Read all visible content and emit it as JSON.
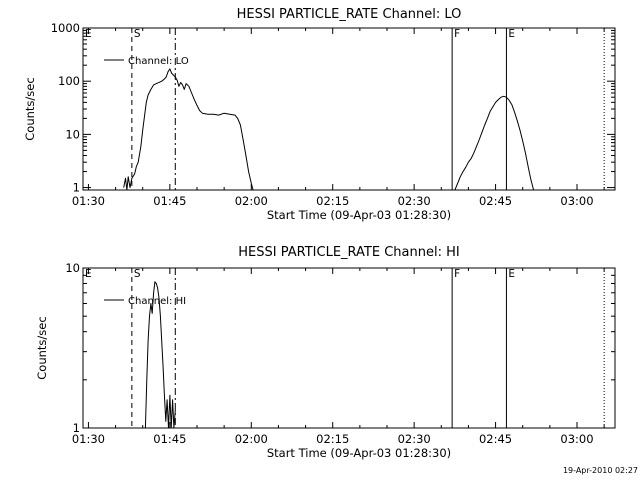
{
  "chart_data": [
    {
      "type": "line",
      "title": "HESSI PARTICLE_RATE Channel: LO",
      "xlabel": "Start Time (09-Apr-03 01:28:30)",
      "ylabel": "Counts/sec",
      "y_scale": "log",
      "ylim": [
        0.9,
        1000
      ],
      "xlim": [
        "01:29",
        "03:07"
      ],
      "x_tick_labels": [
        "01:30",
        "01:45",
        "02:00",
        "02:15",
        "02:30",
        "02:45",
        "03:00"
      ],
      "y_tick_labels": [
        "1",
        "10",
        "100",
        "1000"
      ],
      "legend": {
        "entry": "Channel: LO",
        "position": "top-left"
      },
      "markers": [
        {
          "label": "E",
          "time": "01:29",
          "style": "none"
        },
        {
          "label": "S",
          "time": "01:38",
          "style": "dashed"
        },
        {
          "label": "",
          "time": "01:46",
          "style": "dash-dot"
        },
        {
          "label": "F",
          "time": "02:37",
          "style": "solid"
        },
        {
          "label": "E",
          "time": "02:47",
          "style": "solid"
        },
        {
          "label": "",
          "time": "03:05",
          "style": "dotted"
        }
      ],
      "series": [
        {
          "segments": [
            [
              [
                "01:36:30",
                1.0
              ],
              [
                "01:36:50",
                1.5
              ],
              [
                "01:37:05",
                0.9
              ],
              [
                "01:37:20",
                1.6
              ],
              [
                "01:37:40",
                1.0
              ],
              [
                "01:38:00",
                1.5
              ],
              [
                "01:38:30",
                1.8
              ],
              [
                "01:38:50",
                2.5
              ],
              [
                "01:39:10",
                3.0
              ],
              [
                "01:39:40",
                6.0
              ],
              [
                "01:40:00",
                12
              ],
              [
                "01:40:20",
                22
              ],
              [
                "01:40:40",
                40
              ],
              [
                "01:41:00",
                55
              ],
              [
                "01:41:30",
                70
              ],
              [
                "01:42:00",
                85
              ],
              [
                "01:42:30",
                90
              ],
              [
                "01:43:00",
                95
              ],
              [
                "01:43:30",
                100
              ],
              [
                "01:44:00",
                110
              ],
              [
                "01:44:20",
                120
              ],
              [
                "01:44:40",
                150
              ],
              [
                "01:45:00",
                170
              ],
              [
                "01:45:20",
                140
              ],
              [
                "01:45:40",
                130
              ],
              [
                "01:46:00",
                120
              ],
              [
                "01:46:20",
                105
              ],
              [
                "01:46:40",
                80
              ],
              [
                "01:47:00",
                95
              ],
              [
                "01:47:20",
                85
              ],
              [
                "01:47:40",
                70
              ],
              [
                "01:48:00",
                90
              ],
              [
                "01:48:30",
                80
              ],
              [
                "01:49:00",
                60
              ],
              [
                "01:49:30",
                45
              ],
              [
                "01:50:00",
                35
              ],
              [
                "01:50:30",
                28
              ],
              [
                "01:51:00",
                25
              ],
              [
                "01:52:00",
                24
              ],
              [
                "01:53:00",
                24
              ],
              [
                "01:54:00",
                23
              ],
              [
                "01:55:00",
                25
              ],
              [
                "01:56:00",
                24
              ],
              [
                "01:57:00",
                23
              ],
              [
                "01:57:30",
                20
              ],
              [
                "01:58:00",
                15
              ],
              [
                "01:58:30",
                8
              ],
              [
                "01:59:00",
                4
              ],
              [
                "01:59:30",
                2
              ],
              [
                "02:00:00",
                1.2
              ],
              [
                "02:00:20",
                0.9
              ]
            ],
            [
              [
                "02:37:30",
                0.9
              ],
              [
                "02:38:00",
                1.2
              ],
              [
                "02:38:30",
                1.6
              ],
              [
                "02:39:00",
                2.0
              ],
              [
                "02:39:30",
                2.4
              ],
              [
                "02:40:00",
                3.0
              ],
              [
                "02:40:30",
                3.5
              ],
              [
                "02:41:00",
                4.5
              ],
              [
                "02:41:30",
                6.0
              ],
              [
                "02:42:00",
                8.0
              ],
              [
                "02:42:30",
                11
              ],
              [
                "02:43:00",
                15
              ],
              [
                "02:43:30",
                20
              ],
              [
                "02:44:00",
                27
              ],
              [
                "02:44:30",
                33
              ],
              [
                "02:45:00",
                40
              ],
              [
                "02:45:30",
                45
              ],
              [
                "02:46:00",
                50
              ],
              [
                "02:46:30",
                52
              ],
              [
                "02:47:00",
                50
              ],
              [
                "02:47:30",
                44
              ],
              [
                "02:48:00",
                36
              ],
              [
                "02:48:30",
                26
              ],
              [
                "02:49:00",
                18
              ],
              [
                "02:49:30",
                12
              ],
              [
                "02:50:00",
                7.5
              ],
              [
                "02:50:30",
                4.5
              ],
              [
                "02:51:00",
                2.5
              ],
              [
                "02:51:30",
                1.4
              ],
              [
                "02:52:00",
                0.9
              ]
            ]
          ]
        }
      ]
    },
    {
      "type": "line",
      "title": "HESSI PARTICLE_RATE Channel: HI",
      "xlabel": "Start Time (09-Apr-03 01:28:30)",
      "ylabel": "Counts/sec",
      "y_scale": "log",
      "ylim": [
        1,
        10
      ],
      "xlim": [
        "01:29",
        "03:07"
      ],
      "x_tick_labels": [
        "01:30",
        "01:45",
        "02:00",
        "02:15",
        "02:30",
        "02:45",
        "03:00"
      ],
      "y_tick_labels": [
        "1",
        "10"
      ],
      "legend": {
        "entry": "Channel: HI",
        "position": "top-left"
      },
      "markers": [
        {
          "label": "E",
          "time": "01:29",
          "style": "none"
        },
        {
          "label": "S",
          "time": "01:38",
          "style": "dashed"
        },
        {
          "label": "",
          "time": "01:46",
          "style": "dash-dot"
        },
        {
          "label": "F",
          "time": "02:37",
          "style": "solid"
        },
        {
          "label": "E",
          "time": "02:47",
          "style": "solid"
        },
        {
          "label": "",
          "time": "03:05",
          "style": "dotted"
        }
      ],
      "series": [
        {
          "segments": [
            [
              [
                "01:40:30",
                1.0
              ],
              [
                "01:40:45",
                2.0
              ],
              [
                "01:41:00",
                3.5
              ],
              [
                "01:41:15",
                5.0
              ],
              [
                "01:41:30",
                6.0
              ],
              [
                "01:41:45",
                5.2
              ],
              [
                "01:42:00",
                7.0
              ],
              [
                "01:42:15",
                8.2
              ],
              [
                "01:42:30",
                8.0
              ],
              [
                "01:42:45",
                7.5
              ],
              [
                "01:43:00",
                6.5
              ],
              [
                "01:43:15",
                5.0
              ],
              [
                "01:43:30",
                3.5
              ],
              [
                "01:43:45",
                2.4
              ],
              [
                "01:44:00",
                1.6
              ],
              [
                "01:44:15",
                1.1
              ],
              [
                "01:44:30",
                1.5
              ],
              [
                "01:44:45",
                1.0
              ],
              [
                "01:45:00",
                1.6
              ],
              [
                "01:45:15",
                1.0
              ],
              [
                "01:45:30",
                1.5
              ],
              [
                "01:45:45",
                1.0
              ],
              [
                "01:46:00",
                1.3
              ]
            ]
          ]
        }
      ]
    }
  ],
  "footer": {
    "stamp": "19-Apr-2010 02:27"
  }
}
